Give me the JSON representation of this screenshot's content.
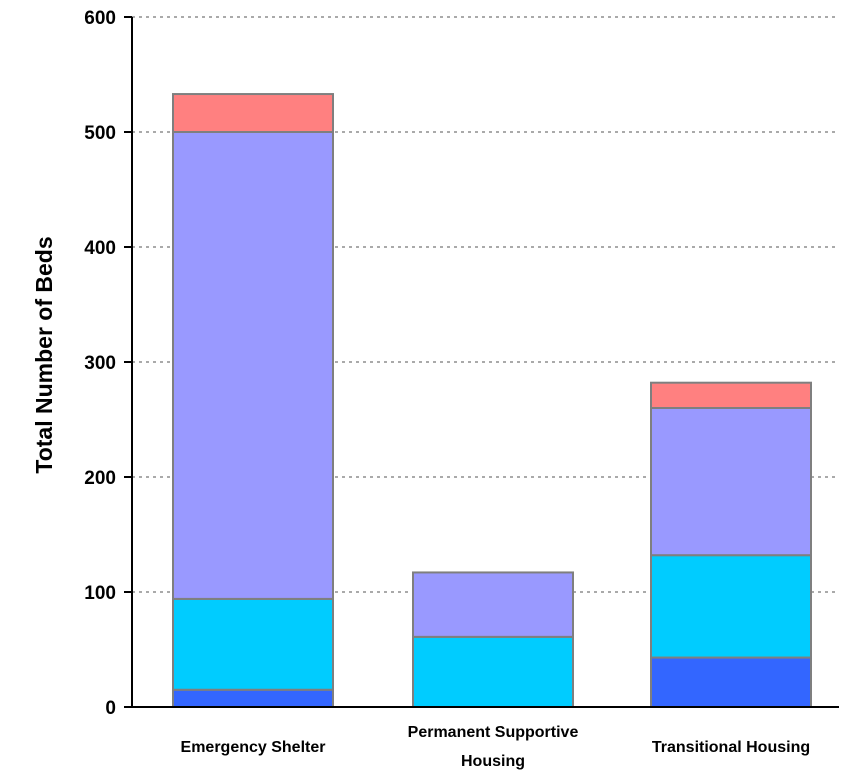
{
  "chart_data": {
    "type": "bar",
    "stacked": true,
    "title": "",
    "xlabel": "",
    "ylabel": "Total Number of Beds",
    "ylim": [
      0,
      600
    ],
    "yticks": [
      0,
      100,
      200,
      300,
      400,
      500,
      600
    ],
    "grid": true,
    "legend": "none",
    "categories": [
      [
        "Emergency Shelter"
      ],
      [
        "Permanent Supportive",
        "Housing"
      ],
      [
        "Transitional Housing"
      ]
    ],
    "series": [
      {
        "color": "#3366ff",
        "values": [
          15,
          0,
          43
        ]
      },
      {
        "color": "#00ccff",
        "values": [
          79,
          61,
          89
        ]
      },
      {
        "color": "#9999ff",
        "values": [
          406,
          56,
          128
        ]
      },
      {
        "color": "#ff8080",
        "values": [
          33,
          0,
          22
        ]
      }
    ]
  }
}
